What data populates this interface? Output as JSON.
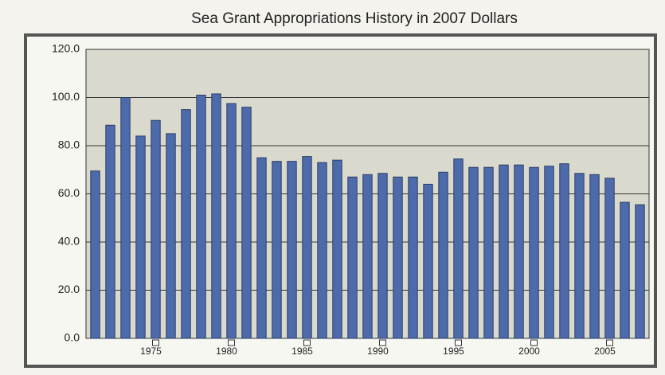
{
  "chart_data": {
    "type": "bar",
    "title": "Sea Grant Appropriations History in 2007 Dollars",
    "categories": [
      null,
      null,
      null,
      null,
      "1975",
      null,
      null,
      null,
      null,
      "1980",
      null,
      null,
      null,
      null,
      "1985",
      null,
      null,
      null,
      null,
      "1990",
      null,
      null,
      null,
      null,
      "1995",
      null,
      null,
      null,
      null,
      "2000",
      null,
      null,
      null,
      null,
      "2005",
      null,
      null
    ],
    "values": [
      69.5,
      88.5,
      100,
      84,
      90.5,
      85,
      95,
      101,
      101.5,
      97.5,
      96,
      75,
      73.5,
      73.5,
      75.5,
      73,
      74,
      67,
      68,
      68.5,
      67,
      67,
      64,
      69,
      74.5,
      71,
      71,
      72,
      72,
      71,
      71.5,
      72.5,
      68.5,
      68,
      66.5,
      56.5,
      55.5
    ],
    "color": "#4d6bab",
    "ylim": [
      0,
      120
    ],
    "yticks": [
      {
        "value": 0,
        "label": "0.0"
      },
      {
        "value": 20,
        "label": "20.0"
      },
      {
        "value": 40,
        "label": "40.0"
      },
      {
        "value": 60,
        "label": "60.0"
      },
      {
        "value": 80,
        "label": "80.0"
      },
      {
        "value": 100,
        "label": "100.0"
      },
      {
        "value": 120,
        "label": "120.0"
      }
    ],
    "grid": true
  }
}
